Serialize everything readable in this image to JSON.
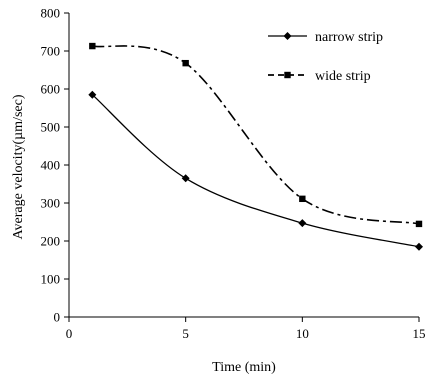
{
  "chart_data": {
    "type": "line",
    "title": "",
    "xlabel": "Time (min)",
    "ylabel": "Average velocity(µm/sec)",
    "xlim": [
      0,
      15
    ],
    "ylim": [
      0,
      800
    ],
    "xticks": [
      0,
      5,
      10,
      15
    ],
    "yticks": [
      0,
      100,
      200,
      300,
      400,
      500,
      600,
      700,
      800
    ],
    "grid": false,
    "legend_position": "top-right",
    "series": [
      {
        "name": "narrow strip",
        "line_style": "solid",
        "marker": "diamond",
        "color": "#000000",
        "x": [
          1,
          5,
          10,
          15
        ],
        "y": [
          585,
          365,
          247,
          185
        ]
      },
      {
        "name": "wide strip",
        "line_style": "dash-dot",
        "marker": "square",
        "color": "#000000",
        "x": [
          1,
          5,
          10,
          15
        ],
        "y": [
          713,
          668,
          311,
          245
        ]
      }
    ]
  }
}
